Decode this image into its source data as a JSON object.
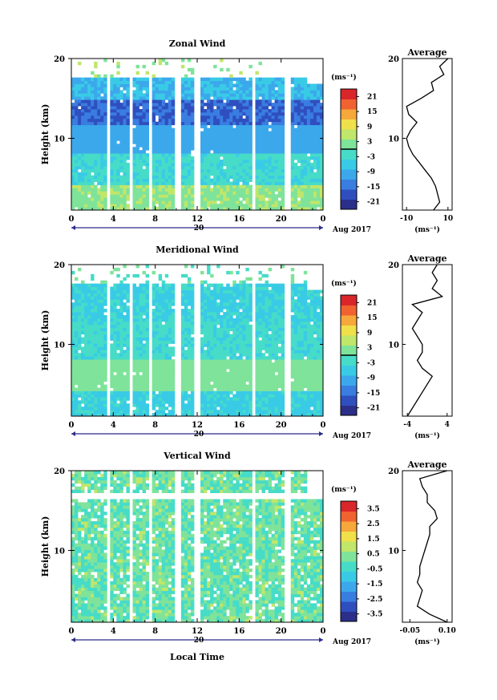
{
  "figure": {
    "xlabel": "Local Time",
    "date_mark": "20",
    "date_caption": "Aug 2017",
    "unit_label": "(ms⁻¹)",
    "profile_title": "Average"
  },
  "chart_data": [
    {
      "type": "heatmap",
      "title": "Zonal Wind",
      "ylabel": "Height (km)",
      "x_ticks": [
        "0",
        "4",
        "8",
        "12",
        "16",
        "20",
        "0"
      ],
      "x_range_hours": [
        0,
        24
      ],
      "y_ticks": [
        "10",
        "20"
      ],
      "y_range_km": [
        1,
        20
      ],
      "colorbar": {
        "ticks": [
          "21",
          "15",
          "9",
          "3",
          "-3",
          "-9",
          "-15",
          "-21"
        ],
        "range": [
          -24,
          24
        ]
      },
      "profile": {
        "x_ticks": [
          "-10",
          "10"
        ],
        "x_range": [
          -12,
          12
        ],
        "height_km": [
          1,
          2,
          3,
          4,
          5,
          6,
          7,
          8,
          9,
          10,
          11,
          12,
          13,
          14,
          15,
          16,
          17,
          18,
          19,
          20
        ],
        "values": [
          3,
          6,
          5,
          4,
          2,
          -1,
          -4,
          -7,
          -9,
          -10,
          -8,
          -5,
          -9,
          -10,
          -3,
          3,
          2,
          8,
          6,
          10
        ]
      }
    },
    {
      "type": "heatmap",
      "title": "Meridional Wind",
      "ylabel": "Height (km)",
      "x_ticks": [
        "0",
        "4",
        "8",
        "12",
        "16",
        "20",
        "0"
      ],
      "x_range_hours": [
        0,
        24
      ],
      "y_ticks": [
        "10",
        "20"
      ],
      "y_range_km": [
        1,
        20
      ],
      "colorbar": {
        "ticks": [
          "21",
          "15",
          "9",
          "3",
          "-3",
          "-9",
          "-15",
          "-21"
        ],
        "range": [
          -24,
          24
        ]
      },
      "profile": {
        "x_ticks": [
          "-4",
          "4"
        ],
        "x_range": [
          -5,
          5
        ],
        "height_km": [
          1,
          2,
          3,
          4,
          5,
          6,
          7,
          8,
          9,
          10,
          11,
          12,
          13,
          14,
          15,
          16,
          17,
          18,
          19,
          20
        ],
        "values": [
          -4,
          -3,
          -2,
          -1,
          0,
          1,
          -1,
          -2,
          -1,
          -1,
          -2,
          -3,
          -2,
          -1,
          -3,
          3,
          1,
          2,
          1,
          2
        ]
      }
    },
    {
      "type": "heatmap",
      "title": "Vertical Wind",
      "ylabel": "Height (km)",
      "x_ticks": [
        "0",
        "4",
        "8",
        "12",
        "16",
        "20",
        "0"
      ],
      "x_range_hours": [
        0,
        24
      ],
      "y_ticks": [
        "10",
        "20"
      ],
      "y_range_km": [
        1,
        20
      ],
      "colorbar": {
        "ticks": [
          "3.5",
          "2.5",
          "1.5",
          "0.5",
          "-0.5",
          "-1.5",
          "-2.5",
          "-3.5"
        ],
        "range": [
          -4,
          4
        ]
      },
      "profile": {
        "x_ticks": [
          "-0.05",
          "0.10"
        ],
        "x_range": [
          -0.08,
          0.12
        ],
        "height_km": [
          1,
          2,
          3,
          4,
          5,
          6,
          7,
          8,
          9,
          10,
          11,
          12,
          13,
          14,
          15,
          16,
          17,
          18,
          19,
          20
        ],
        "values": [
          0.1,
          0.03,
          -0.02,
          -0.01,
          0,
          -0.02,
          -0.01,
          -0.01,
          0,
          0.01,
          0.02,
          0.03,
          0.03,
          0.06,
          0.05,
          0.02,
          0.02,
          0,
          -0.01,
          0.1
        ]
      }
    }
  ],
  "colormap": [
    "#2b2f8a",
    "#2f4fbf",
    "#3a7de0",
    "#3ca8ec",
    "#39cbe6",
    "#46dcc8",
    "#7fe39a",
    "#c0e66a",
    "#f0e04a",
    "#f7a83a",
    "#f0622f",
    "#d9262a"
  ]
}
